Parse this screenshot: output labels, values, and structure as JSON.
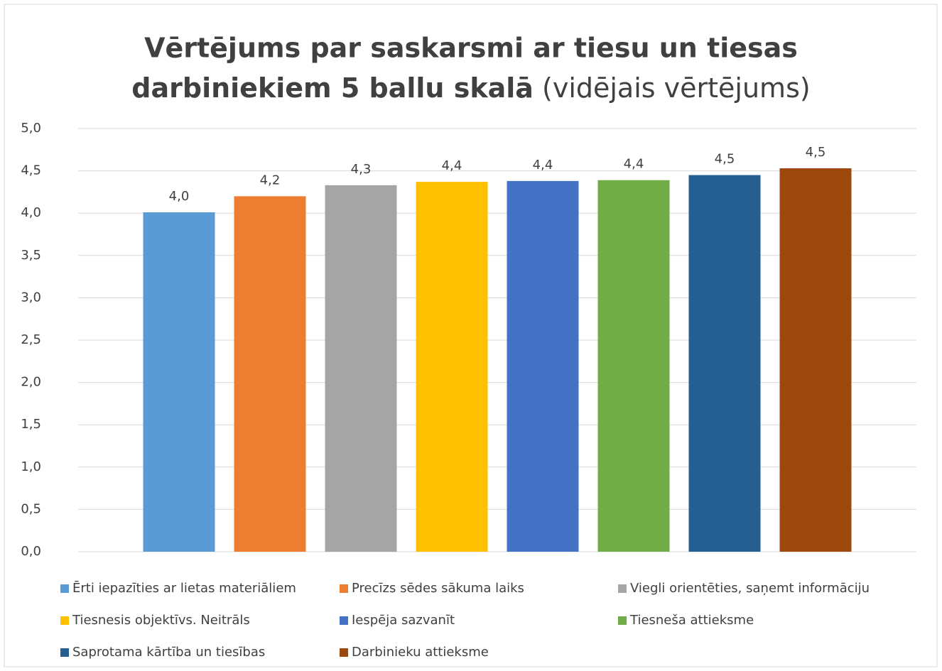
{
  "chart_data": {
    "type": "bar",
    "title": [
      "Vērtējums par saskarsmi ar tiesu un tiesas",
      "darbiniekiem 5 ballu skalā"
    ],
    "title_note": "(vidējais vērtējums)",
    "categories": [
      null
    ],
    "series": [
      {
        "name": "Ērti iepazīties ar lietas materiāliem",
        "color": "#5b9bd5",
        "values": [
          4.01
        ],
        "value_labels": [
          "4,0"
        ]
      },
      {
        "name": "Precīzs sēdes sākuma laiks",
        "color": "#ed7d31",
        "values": [
          4.2
        ],
        "value_labels": [
          "4,2"
        ]
      },
      {
        "name": "Viegli orientēties, saņemt informāciju",
        "color": "#a5a5a5",
        "values": [
          4.33
        ],
        "value_labels": [
          "4,3"
        ]
      },
      {
        "name": "Tiesnesis objektīvs. Neitrāls",
        "color": "#ffc000",
        "values": [
          4.37
        ],
        "value_labels": [
          "4,4"
        ]
      },
      {
        "name": "Iespēja sazvanīt",
        "color": "#4472c4",
        "values": [
          4.38
        ],
        "value_labels": [
          "4,4"
        ]
      },
      {
        "name": "Tiesneša attieksme",
        "color": "#70ad47",
        "values": [
          4.39
        ],
        "value_labels": [
          "4,4"
        ]
      },
      {
        "name": "Saprotama kārtība un tiesības",
        "color": "#255e91",
        "values": [
          4.45
        ],
        "value_labels": [
          "4,5"
        ]
      },
      {
        "name": "Darbinieku attieksme",
        "color": "#9e480e",
        "values": [
          4.53
        ],
        "value_labels": [
          "4,5"
        ]
      }
    ],
    "ylim": [
      0,
      5
    ],
    "yticks": [
      {
        "value": 0,
        "label": "0,0"
      },
      {
        "value": 0.5,
        "label": "0,5"
      },
      {
        "value": 1,
        "label": "1,0"
      },
      {
        "value": 1.5,
        "label": "1,5"
      },
      {
        "value": 2,
        "label": "2,0"
      },
      {
        "value": 2.5,
        "label": "2,5"
      },
      {
        "value": 3,
        "label": "3,0"
      },
      {
        "value": 3.5,
        "label": "3,5"
      },
      {
        "value": 4,
        "label": "4,0"
      },
      {
        "value": 4.5,
        "label": "4,5"
      },
      {
        "value": 5,
        "label": "5,0"
      }
    ],
    "grid": true,
    "legend": "bottom"
  }
}
